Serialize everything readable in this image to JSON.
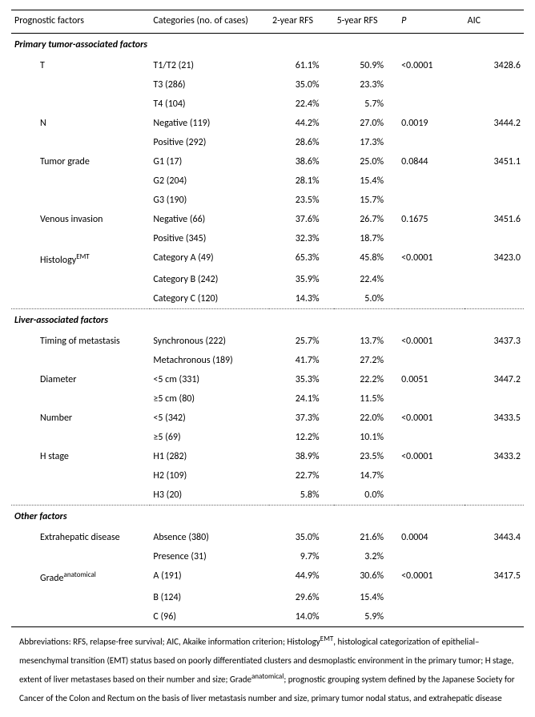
{
  "headers": {
    "c1": "Prognostic factors",
    "c2": "Categories (no. of cases)",
    "c3": "2-year RFS",
    "c4": "5-year RFS",
    "c5": "P",
    "c6": "AIC"
  },
  "sections": [
    {
      "title": "Primary tumor-associated factors",
      "factors": [
        {
          "name": "T",
          "p": "<0.0001",
          "aic": "3428.6",
          "rows": [
            {
              "cat": "T1/T2 (21)",
              "y2": "61.1%",
              "y5": "50.9%"
            },
            {
              "cat": "T3 (286)",
              "y2": "35.0%",
              "y5": "23.3%"
            },
            {
              "cat": "T4 (104)",
              "y2": "22.4%",
              "y5": "5.7%"
            }
          ]
        },
        {
          "name": "N",
          "p": "0.0019",
          "aic": "3444.2",
          "rows": [
            {
              "cat": "Negative (119)",
              "y2": "44.2%",
              "y5": "27.0%"
            },
            {
              "cat": "Positive (292)",
              "y2": "28.6%",
              "y5": "17.3%"
            }
          ]
        },
        {
          "name": "Tumor grade",
          "p": "0.0844",
          "aic": "3451.1",
          "rows": [
            {
              "cat": "G1 (17)",
              "y2": "38.6%",
              "y5": "25.0%"
            },
            {
              "cat": "G2 (204)",
              "y2": "28.1%",
              "y5": "15.4%"
            },
            {
              "cat": "G3 (190)",
              "y2": "23.5%",
              "y5": "15.7%"
            }
          ]
        },
        {
          "name": "Venous invasion",
          "p": "0.1675",
          "aic": "3451.6",
          "rows": [
            {
              "cat": "Negative (66)",
              "y2": "37.6%",
              "y5": "26.7%"
            },
            {
              "cat": "Positive (345)",
              "y2": "32.3%",
              "y5": "18.7%"
            }
          ]
        },
        {
          "name": "Histology",
          "name_sup": "EMT",
          "p": "<0.0001",
          "aic": "3423.0",
          "rows": [
            {
              "cat": "Category A (49)",
              "y2": "65.3%",
              "y5": "45.8%"
            },
            {
              "cat": "Category B (242)",
              "y2": "35.9%",
              "y5": "22.4%"
            },
            {
              "cat": "Category C (120)",
              "y2": "14.3%",
              "y5": "5.0%"
            }
          ]
        }
      ]
    },
    {
      "title": "Liver-associated factors",
      "factors": [
        {
          "name": "Timing of metastasis",
          "p": "<0.0001",
          "aic": "3437.3",
          "rows": [
            {
              "cat": "Synchronous (222)",
              "y2": "25.7%",
              "y5": "13.7%"
            },
            {
              "cat": "Metachronous (189)",
              "y2": "41.7%",
              "y5": "27.2%"
            }
          ]
        },
        {
          "name": "Diameter",
          "p": "0.0051",
          "aic": "3447.2",
          "rows": [
            {
              "cat": "<5 cm (331)",
              "y2": "35.3%",
              "y5": "22.2%"
            },
            {
              "cat": "≥5 cm (80)",
              "y2": "24.1%",
              "y5": "11.5%"
            }
          ]
        },
        {
          "name": "Number",
          "p": "<0.0001",
          "aic": "3433.5",
          "rows": [
            {
              "cat": "<5 (342)",
              "y2": "37.3%",
              "y5": "22.0%"
            },
            {
              "cat": "≥5 (69)",
              "y2": "12.2%",
              "y5": "10.1%"
            }
          ]
        },
        {
          "name": "H stage",
          "p": "<0.0001",
          "aic": "3433.2",
          "rows": [
            {
              "cat": "H1 (282)",
              "y2": "38.9%",
              "y5": "23.5%"
            },
            {
              "cat": "H2 (109)",
              "y2": "22.7%",
              "y5": "14.7%"
            },
            {
              "cat": "H3 (20)",
              "y2": "5.8%",
              "y5": "0.0%"
            }
          ]
        }
      ]
    },
    {
      "title": "Other factors",
      "factors": [
        {
          "name": "Extrahepatic disease",
          "p": "0.0004",
          "aic": "3443.4",
          "rows": [
            {
              "cat": "Absence (380)",
              "y2": "35.0%",
              "y5": "21.6%"
            },
            {
              "cat": "Presence (31)",
              "y2": "9.7%",
              "y5": "3.2%"
            }
          ]
        },
        {
          "name": "Grade",
          "name_sup": "anatomical",
          "p": "<0.0001",
          "aic": "3417.5",
          "rows": [
            {
              "cat": "A (191)",
              "y2": "44.9%",
              "y5": "30.6%"
            },
            {
              "cat": "B (124)",
              "y2": "29.6%",
              "y5": "15.4%"
            },
            {
              "cat": "C (96)",
              "y2": "14.0%",
              "y5": "5.9%"
            }
          ]
        }
      ]
    }
  ],
  "footnote": {
    "pre1": "Abbreviations: RFS, relapse-free survival; AIC, Akaike information criterion; Histology",
    "sup1": "EMT",
    "mid1": ", histological categorization of epithelial–mesenchymal transition (EMT) status based on poorly differentiated clusters and desmoplastic environment in the primary tumor; H stage, extent of liver metastases based on their number and size; Grade",
    "sup2": "anatomical",
    "post": "; prognostic grouping system defined by the Japanese Society for Cancer of the Colon and Rectum on the basis of liver metastasis number and size, primary tumor nodal status, and extrahepatic disease"
  }
}
